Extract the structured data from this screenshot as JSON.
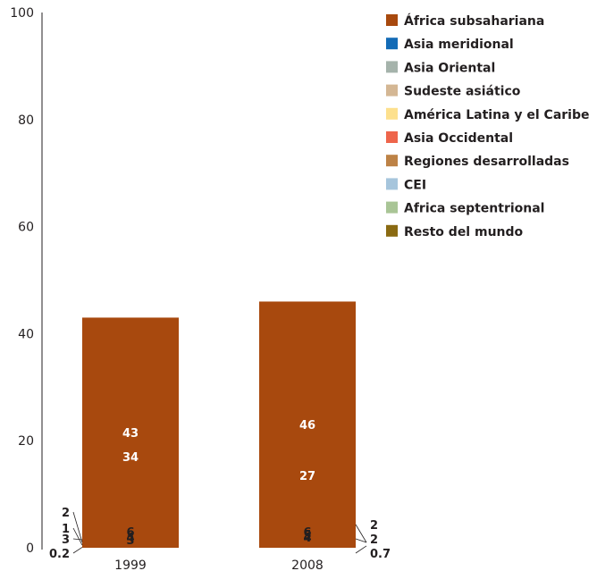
{
  "chart_data": {
    "type": "bar",
    "stacked": true,
    "categories": [
      "1999",
      "2008"
    ],
    "ylim": [
      0,
      100
    ],
    "yticks": [
      "0",
      "20",
      "40",
      "60",
      "80",
      "100"
    ],
    "legend_position": "right",
    "series": [
      {
        "name": "Resto del mundo",
        "color": "#8a6a12",
        "values": [
          0.2,
          0.7
        ],
        "labels": [
          "0.2",
          "0.7"
        ]
      },
      {
        "name": "Africa septentrional",
        "color": "#a9c596",
        "values": [
          3,
          2
        ],
        "labels": [
          "3",
          "2"
        ]
      },
      {
        "name": "CEI",
        "color": "#a6c5dc",
        "values": [
          1,
          2
        ],
        "labels": [
          "1",
          "2"
        ]
      },
      {
        "name": "Regiones desarrolladas",
        "color": "#bd8246",
        "values": [
          2,
          4
        ],
        "labels": [
          "2",
          "4"
        ]
      },
      {
        "name": "Asia Occidental",
        "color": "#ee654b",
        "values": [
          4,
          4
        ],
        "labels": [
          "4",
          "4"
        ]
      },
      {
        "name": "América Latina y el Caribe",
        "color": "#fde08d",
        "values": [
          3,
          4
        ],
        "labels": [
          "3",
          "4"
        ]
      },
      {
        "name": "Sudeste asiático",
        "color": "#d4b794",
        "values": [
          4,
          5
        ],
        "labels": [
          "4",
          "5"
        ]
      },
      {
        "name": "Asia Oriental",
        "color": "#a5b3ab",
        "values": [
          6,
          6
        ],
        "labels": [
          "6",
          "6"
        ]
      },
      {
        "name": "Asia meridional",
        "color": "#136bb6",
        "values": [
          34,
          27
        ],
        "labels": [
          "34",
          "27"
        ]
      },
      {
        "name": "África subsahariana",
        "color": "#a8490e",
        "values": [
          43,
          46
        ],
        "labels": [
          "43",
          "46"
        ]
      }
    ],
    "legend_order": [
      "África subsahariana",
      "Asia meridional",
      "Asia Oriental",
      "Sudeste asiático",
      "América Latina y el Caribe",
      "Asia Occidental",
      "Regiones desarrolladas",
      "CEI",
      "Africa septentrional",
      "Resto del mundo"
    ]
  }
}
